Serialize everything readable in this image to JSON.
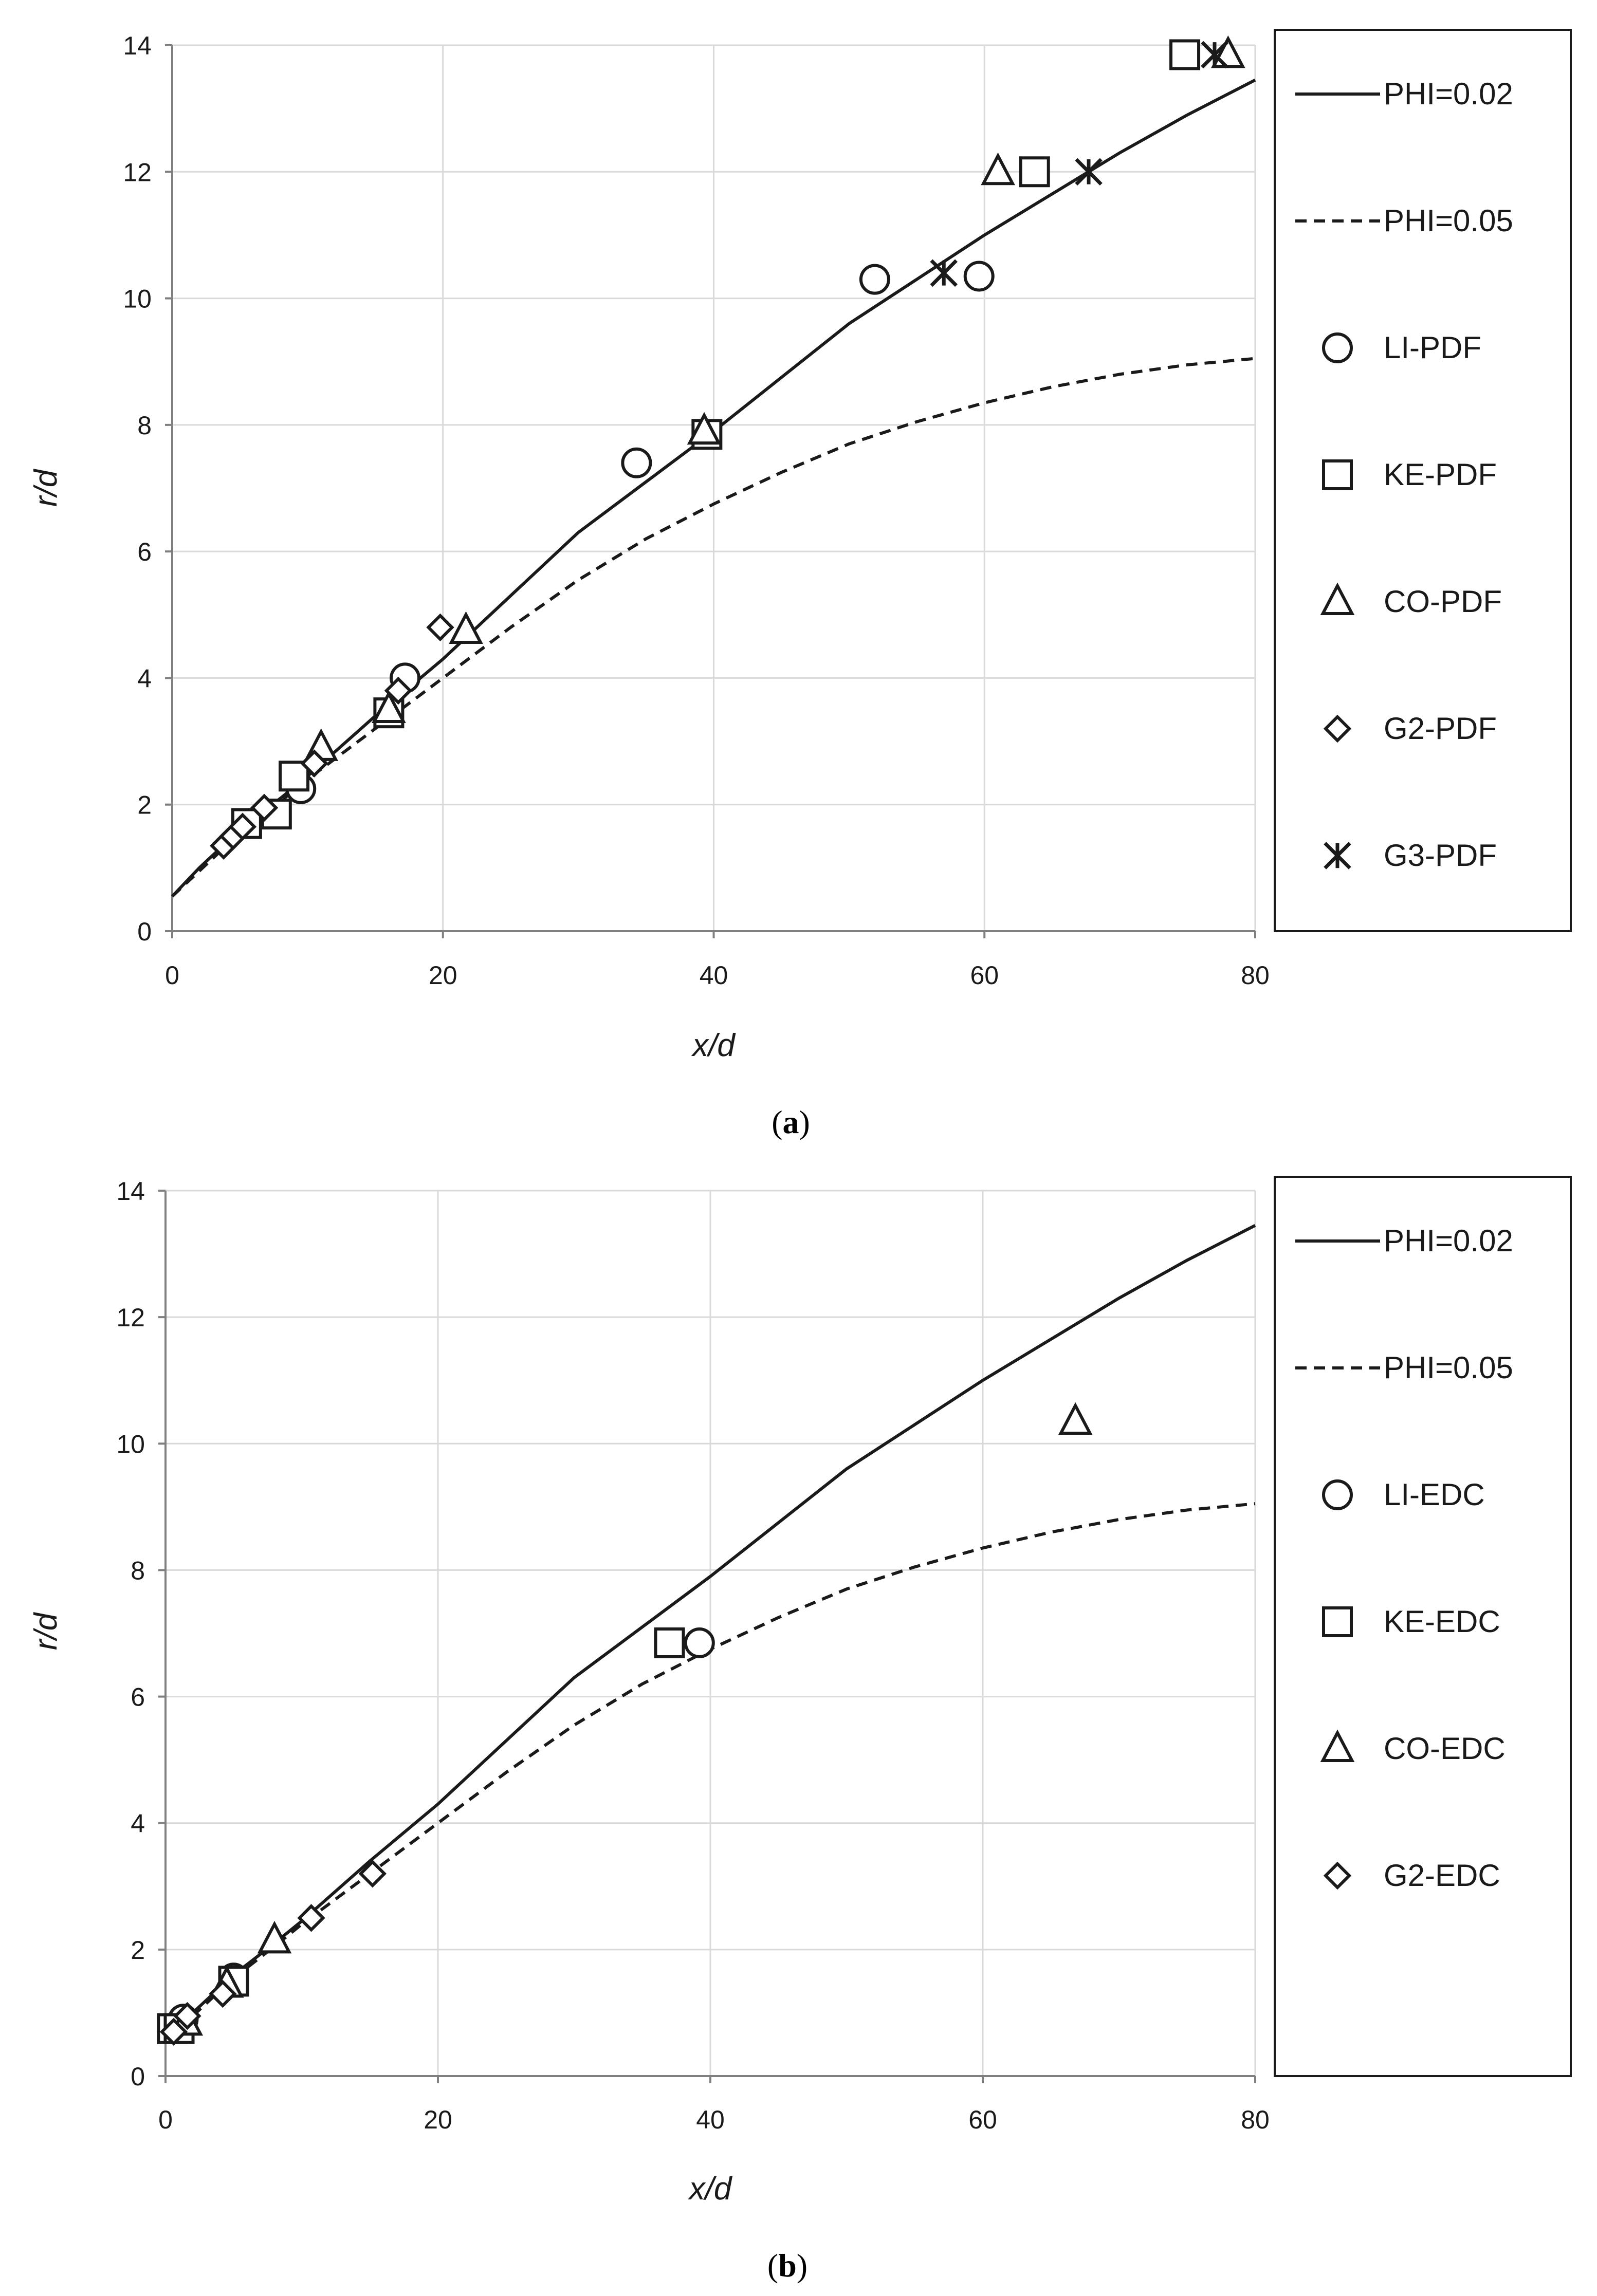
{
  "chart_data": [
    {
      "type": "scatter",
      "panel_label": "a",
      "xlabel": "x/d",
      "ylabel": "r/d",
      "xlim": [
        0,
        80
      ],
      "ylim": [
        0,
        14
      ],
      "xticks": [
        0,
        20,
        40,
        60,
        80
      ],
      "yticks": [
        0,
        2,
        4,
        6,
        8,
        10,
        12,
        14
      ],
      "grid": true,
      "legend_position": "right",
      "curves": [
        {
          "name": "PHI=0.02",
          "style": "solid",
          "x": [
            0,
            2,
            5,
            8,
            10,
            15,
            20,
            25,
            30,
            35,
            40,
            45,
            50,
            55,
            60,
            65,
            70,
            75,
            80
          ],
          "y": [
            0.55,
            1.0,
            1.6,
            2.1,
            2.45,
            3.4,
            4.3,
            5.3,
            6.3,
            7.1,
            7.9,
            8.75,
            9.6,
            10.3,
            11.0,
            11.65,
            12.3,
            12.9,
            13.45
          ]
        },
        {
          "name": "PHI=0.05",
          "style": "dashed",
          "x": [
            0,
            2,
            5,
            8,
            10,
            15,
            20,
            25,
            30,
            35,
            40,
            45,
            50,
            55,
            60,
            65,
            70,
            75,
            80
          ],
          "y": [
            0.55,
            0.95,
            1.55,
            2.05,
            2.4,
            3.2,
            4.0,
            4.8,
            5.55,
            6.2,
            6.75,
            7.25,
            7.7,
            8.05,
            8.35,
            8.6,
            8.8,
            8.95,
            9.05
          ]
        }
      ],
      "series": [
        {
          "name": "LI-PDF",
          "marker": "circle",
          "x": [
            9.5,
            17.2,
            34.3,
            51.9,
            59.6
          ],
          "y": [
            2.25,
            4.0,
            7.4,
            10.3,
            10.35
          ]
        },
        {
          "name": "KE-PDF",
          "marker": "square",
          "x": [
            5.5,
            7.7,
            9.0,
            16.0,
            39.5,
            63.7,
            74.8
          ],
          "y": [
            1.7,
            1.85,
            2.45,
            3.45,
            7.85,
            12.0,
            13.85
          ]
        },
        {
          "name": "CO-PDF",
          "marker": "triangle",
          "x": [
            11.0,
            16.0,
            21.7,
            39.3,
            61.0,
            78.0
          ],
          "y": [
            2.9,
            3.5,
            4.75,
            7.9,
            12.0,
            13.85
          ]
        },
        {
          "name": "G2-PDF",
          "marker": "diamond",
          "x": [
            3.8,
            4.5,
            5.2,
            6.8,
            10.5,
            16.7,
            19.8
          ],
          "y": [
            1.35,
            1.5,
            1.65,
            1.95,
            2.65,
            3.8,
            4.8
          ]
        },
        {
          "name": "G3-PDF",
          "marker": "asterisk",
          "x": [
            57.0,
            67.7,
            77.0
          ],
          "y": [
            10.4,
            12.0,
            13.85
          ]
        }
      ]
    },
    {
      "type": "scatter",
      "panel_label": "b",
      "xlabel": "x/d",
      "ylabel": "r/d",
      "xlim": [
        0,
        80
      ],
      "ylim": [
        0,
        14
      ],
      "xticks": [
        0,
        20,
        40,
        60,
        80
      ],
      "yticks": [
        0,
        2,
        4,
        6,
        8,
        10,
        12,
        14
      ],
      "grid": true,
      "legend_position": "right",
      "curves": [
        {
          "name": "PHI=0.02",
          "style": "solid",
          "x": [
            0,
            2,
            5,
            8,
            10,
            15,
            20,
            25,
            30,
            35,
            40,
            45,
            50,
            55,
            60,
            65,
            70,
            75,
            80
          ],
          "y": [
            0.55,
            1.0,
            1.6,
            2.1,
            2.45,
            3.4,
            4.3,
            5.3,
            6.3,
            7.1,
            7.9,
            8.75,
            9.6,
            10.3,
            11.0,
            11.65,
            12.3,
            12.9,
            13.45
          ]
        },
        {
          "name": "PHI=0.05",
          "style": "dashed",
          "x": [
            0,
            2,
            5,
            8,
            10,
            15,
            20,
            25,
            30,
            35,
            40,
            45,
            50,
            55,
            60,
            65,
            70,
            75,
            80
          ],
          "y": [
            0.55,
            0.95,
            1.55,
            2.05,
            2.4,
            3.2,
            4.0,
            4.8,
            5.55,
            6.2,
            6.75,
            7.25,
            7.7,
            8.05,
            8.35,
            8.6,
            8.8,
            8.95,
            9.05
          ]
        }
      ],
      "series": [
        {
          "name": "LI-EDC",
          "marker": "circle",
          "x": [
            0.9,
            1.3,
            5.0,
            39.2
          ],
          "y": [
            0.8,
            0.9,
            1.55,
            6.85
          ]
        },
        {
          "name": "KE-EDC",
          "marker": "square",
          "x": [
            0.5,
            1.0,
            5.0,
            37.0
          ],
          "y": [
            0.75,
            0.75,
            1.5,
            6.85
          ]
        },
        {
          "name": "CO-EDC",
          "marker": "triangle",
          "x": [
            1.5,
            4.5,
            8.0,
            66.8
          ],
          "y": [
            0.85,
            1.45,
            2.15,
            10.35
          ]
        },
        {
          "name": "G2-EDC",
          "marker": "diamond",
          "x": [
            0.6,
            1.6,
            4.2,
            10.7,
            15.2
          ],
          "y": [
            0.7,
            0.95,
            1.3,
            2.5,
            3.2
          ]
        }
      ]
    }
  ]
}
